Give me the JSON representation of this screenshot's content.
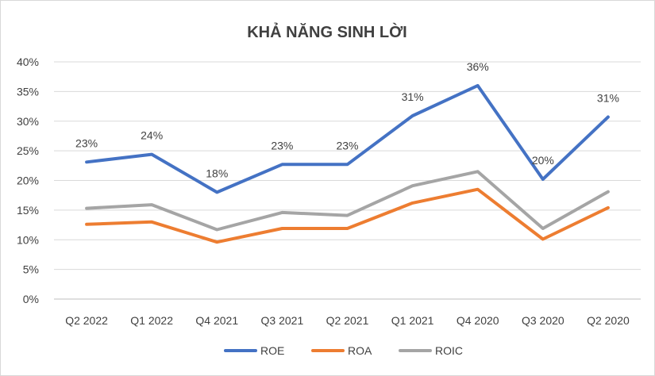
{
  "chart_data": {
    "type": "line",
    "title": "KHẢ NĂNG SINH LỜI",
    "categories": [
      "Q2 2022",
      "Q1 2022",
      "Q4 2021",
      "Q3 2021",
      "Q2 2021",
      "Q1 2021",
      "Q4 2020",
      "Q3 2020",
      "Q2 2020"
    ],
    "ylim": [
      0,
      40
    ],
    "yticks": [
      0,
      5,
      10,
      15,
      20,
      25,
      30,
      35,
      40
    ],
    "ytick_labels": [
      "0%",
      "5%",
      "10%",
      "15%",
      "20%",
      "25%",
      "30%",
      "35%",
      "40%"
    ],
    "grid": true,
    "legend": "bottom",
    "series": [
      {
        "name": "ROE",
        "color": "#4472c4",
        "values": [
          23.1,
          24.4,
          18.0,
          22.7,
          22.7,
          30.9,
          36.0,
          20.2,
          30.7
        ],
        "data_labels": [
          "23%",
          "24%",
          "18%",
          "23%",
          "23%",
          "31%",
          "36%",
          "20%",
          "31%"
        ]
      },
      {
        "name": "ROA",
        "color": "#ed7d31",
        "values": [
          12.6,
          13.0,
          9.6,
          11.9,
          11.9,
          16.2,
          18.5,
          10.1,
          15.4
        ]
      },
      {
        "name": "ROIC",
        "color": "#a5a5a5",
        "values": [
          15.3,
          15.9,
          11.7,
          14.6,
          14.1,
          19.1,
          21.5,
          11.9,
          18.1
        ]
      }
    ]
  }
}
